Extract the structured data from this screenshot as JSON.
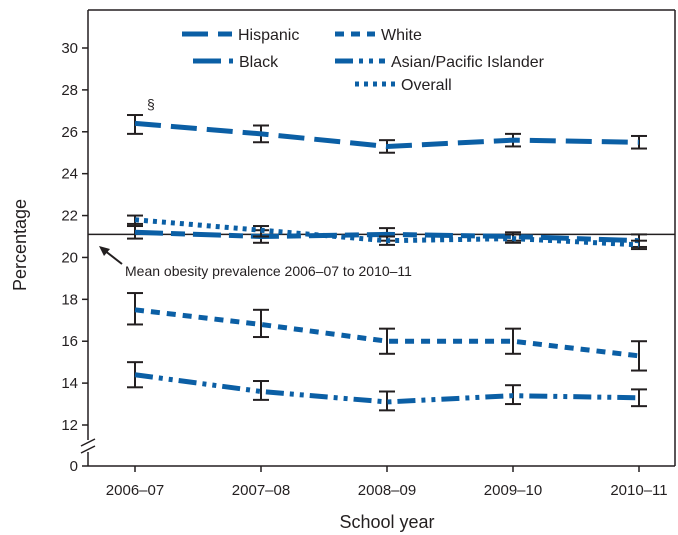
{
  "chart_data": {
    "type": "line",
    "categories": [
      "2006–07",
      "2007–08",
      "2008–09",
      "2009–10",
      "2010–11"
    ],
    "xlabel": "School year",
    "ylabel": "Percentage",
    "ylim": [
      0,
      31
    ],
    "yticks": [
      0,
      12,
      14,
      16,
      18,
      20,
      22,
      24,
      26,
      28,
      30
    ],
    "axis_break": true,
    "grid": false,
    "legend_position": "top",
    "series": [
      {
        "name": "Hispanic",
        "values": [
          26.4,
          25.9,
          25.3,
          25.6,
          25.5
        ],
        "err_low": [
          25.9,
          25.5,
          25.0,
          25.3,
          25.2
        ],
        "err_high": [
          26.8,
          26.3,
          25.6,
          25.9,
          25.8
        ],
        "color": "#0b5fa5",
        "dash": "long"
      },
      {
        "name": "Black",
        "values": [
          21.2,
          21.0,
          21.1,
          21.0,
          20.8
        ],
        "err_low": [
          20.9,
          20.7,
          20.8,
          20.8,
          20.5
        ],
        "err_high": [
          21.6,
          21.3,
          21.4,
          21.2,
          21.1
        ],
        "color": "#0b5fa5",
        "dash": "longshort"
      },
      {
        "name": "White",
        "values": [
          17.5,
          16.8,
          16.0,
          16.0,
          15.3
        ],
        "err_low": [
          16.8,
          16.2,
          15.4,
          15.4,
          14.6
        ],
        "err_high": [
          18.3,
          17.5,
          16.6,
          16.6,
          16.0
        ],
        "color": "#0b5fa5",
        "dash": "short"
      },
      {
        "name": "Asian/Pacific Islander",
        "values": [
          14.4,
          13.6,
          13.1,
          13.4,
          13.3
        ],
        "err_low": [
          13.8,
          13.2,
          12.7,
          13.0,
          12.9
        ],
        "err_high": [
          15.0,
          14.1,
          13.6,
          13.9,
          13.7
        ],
        "color": "#0b5fa5",
        "dash": "dashdotdot"
      },
      {
        "name": "Overall",
        "values": [
          21.8,
          21.3,
          20.8,
          20.9,
          20.6
        ],
        "err_low": [
          21.5,
          21.0,
          20.6,
          20.7,
          20.4
        ],
        "err_high": [
          22.0,
          21.5,
          21.0,
          21.1,
          20.8
        ],
        "color": "#0b5fa5",
        "dash": "dots"
      }
    ],
    "reference_line": {
      "value": 21.1,
      "label": "Mean obesity prevalence 2006–07 to 2010–11"
    },
    "footnote_marker": {
      "symbol": "§",
      "series": "Hispanic",
      "category": "2006–07"
    }
  }
}
